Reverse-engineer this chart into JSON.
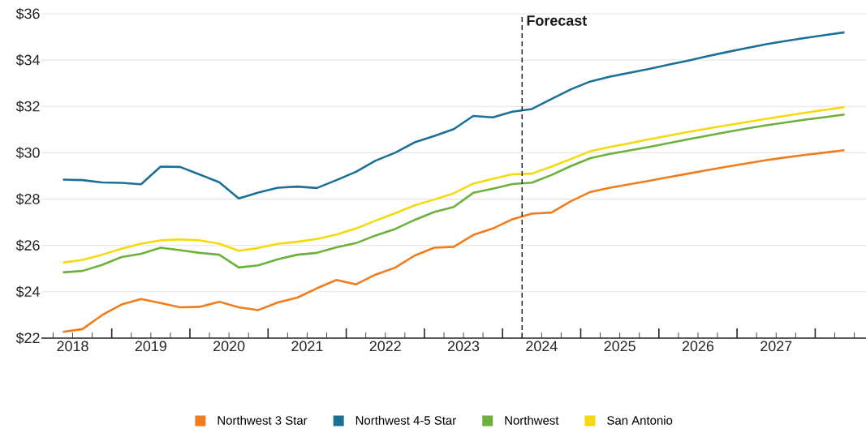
{
  "chart_data": {
    "type": "line",
    "legend": "bottom",
    "grid": "y",
    "line_style": "solid",
    "x": [
      2018.375,
      2018.625,
      2018.875,
      2019.125,
      2019.375,
      2019.625,
      2019.875,
      2020.125,
      2020.375,
      2020.625,
      2020.875,
      2021.125,
      2021.375,
      2021.625,
      2021.875,
      2022.125,
      2022.375,
      2022.625,
      2022.875,
      2023.125,
      2023.375,
      2023.625,
      2023.875,
      2024.125,
      2024.375,
      2024.625,
      2024.875,
      2025.125,
      2025.375,
      2025.625,
      2025.875,
      2026.125,
      2026.375,
      2026.625,
      2026.875,
      2027.125,
      2027.375,
      2027.625,
      2027.875,
      2028.125,
      2028.375
    ],
    "series": [
      {
        "name": "Northwest 3 Star",
        "color": "#f07c1b",
        "values": [
          22.27,
          22.39,
          22.99,
          23.45,
          23.69,
          23.51,
          23.33,
          23.35,
          23.57,
          23.33,
          23.21,
          23.54,
          23.75,
          24.15,
          24.51,
          24.32,
          24.74,
          25.04,
          25.56,
          25.9,
          25.94,
          26.45,
          26.73,
          27.13,
          27.37,
          27.42,
          27.91,
          28.31,
          28.49,
          28.64,
          28.79,
          28.95,
          29.1,
          29.25,
          29.4,
          29.54,
          29.68,
          29.8,
          29.91,
          30.01,
          30.11
        ]
      },
      {
        "name": "Northwest 4-5 Star",
        "color": "#1b7195",
        "values": [
          28.84,
          28.82,
          28.72,
          28.7,
          28.64,
          29.4,
          29.39,
          29.06,
          28.73,
          28.03,
          28.28,
          28.49,
          28.54,
          28.48,
          28.82,
          29.18,
          29.66,
          30.0,
          30.45,
          30.72,
          31.02,
          31.59,
          31.53,
          31.77,
          31.89,
          32.32,
          32.74,
          33.08,
          33.29,
          33.45,
          33.62,
          33.8,
          33.98,
          34.17,
          34.35,
          34.52,
          34.69,
          34.83,
          34.96,
          35.08,
          35.2
        ]
      },
      {
        "name": "Northwest",
        "color": "#6bb13a",
        "values": [
          24.84,
          24.9,
          25.16,
          25.5,
          25.64,
          25.9,
          25.8,
          25.68,
          25.6,
          25.05,
          25.14,
          25.4,
          25.6,
          25.68,
          25.92,
          26.1,
          26.43,
          26.71,
          27.1,
          27.44,
          27.66,
          28.27,
          28.45,
          28.65,
          28.71,
          29.04,
          29.43,
          29.77,
          29.95,
          30.1,
          30.25,
          30.42,
          30.58,
          30.74,
          30.9,
          31.05,
          31.19,
          31.31,
          31.43,
          31.54,
          31.65
        ]
      },
      {
        "name": "San Antonio",
        "color": "#f5d90a",
        "values": [
          25.26,
          25.38,
          25.6,
          25.86,
          26.08,
          26.22,
          26.26,
          26.22,
          26.08,
          25.77,
          25.89,
          26.07,
          26.16,
          26.28,
          26.47,
          26.73,
          27.07,
          27.39,
          27.73,
          27.98,
          28.25,
          28.67,
          28.88,
          29.07,
          29.1,
          29.4,
          29.73,
          30.07,
          30.25,
          30.41,
          30.58,
          30.74,
          30.9,
          31.05,
          31.19,
          31.33,
          31.47,
          31.6,
          31.73,
          31.85,
          31.97
        ]
      }
    ],
    "xlim": [
      2018.1,
      2028.65
    ],
    "xticks": [
      {
        "value": 2018.25,
        "label": null
      },
      {
        "value": 2018.5,
        "label": "2018"
      },
      {
        "value": 2018.75,
        "label": null
      },
      {
        "value": 2019,
        "label": null
      },
      {
        "value": 2019.25,
        "label": null
      },
      {
        "value": 2019.5,
        "label": "2019"
      },
      {
        "value": 2019.75,
        "label": null
      },
      {
        "value": 2020,
        "label": null
      },
      {
        "value": 2020.25,
        "label": null
      },
      {
        "value": 2020.5,
        "label": "2020"
      },
      {
        "value": 2020.75,
        "label": null
      },
      {
        "value": 2021,
        "label": null
      },
      {
        "value": 2021.25,
        "label": null
      },
      {
        "value": 2021.5,
        "label": "2021"
      },
      {
        "value": 2021.75,
        "label": null
      },
      {
        "value": 2022,
        "label": null
      },
      {
        "value": 2022.25,
        "label": null
      },
      {
        "value": 2022.5,
        "label": "2022"
      },
      {
        "value": 2022.75,
        "label": null
      },
      {
        "value": 2023,
        "label": null
      },
      {
        "value": 2023.25,
        "label": null
      },
      {
        "value": 2023.5,
        "label": "2023"
      },
      {
        "value": 2023.75,
        "label": null
      },
      {
        "value": 2024,
        "label": null
      },
      {
        "value": 2024.25,
        "label": null
      },
      {
        "value": 2024.5,
        "label": "2024"
      },
      {
        "value": 2024.75,
        "label": null
      },
      {
        "value": 2025,
        "label": null
      },
      {
        "value": 2025.25,
        "label": null
      },
      {
        "value": 2025.5,
        "label": "2025"
      },
      {
        "value": 2025.75,
        "label": null
      },
      {
        "value": 2026,
        "label": null
      },
      {
        "value": 2026.25,
        "label": null
      },
      {
        "value": 2026.5,
        "label": "2026"
      },
      {
        "value": 2026.75,
        "label": null
      },
      {
        "value": 2027,
        "label": null
      },
      {
        "value": 2027.25,
        "label": null
      },
      {
        "value": 2027.5,
        "label": "2027"
      },
      {
        "value": 2027.75,
        "label": null
      },
      {
        "value": 2028,
        "label": null
      },
      {
        "value": 2028.25,
        "label": null
      },
      {
        "value": 2028.5,
        "label": null
      }
    ],
    "ylim": [
      22,
      36
    ],
    "yticks": [
      {
        "value": 22,
        "label": "$22"
      },
      {
        "value": 24,
        "label": "$24"
      },
      {
        "value": 26,
        "label": "$26"
      },
      {
        "value": 28,
        "label": "$28"
      },
      {
        "value": 30,
        "label": "$30"
      },
      {
        "value": 32,
        "label": "$32"
      },
      {
        "value": 34,
        "label": "$34"
      },
      {
        "value": 36,
        "label": "$36"
      }
    ],
    "ref_lines": [
      {
        "axis": "x",
        "value": 2024.25,
        "label": "Forecast",
        "color": "#222222",
        "line_style": "dashed"
      }
    ]
  }
}
